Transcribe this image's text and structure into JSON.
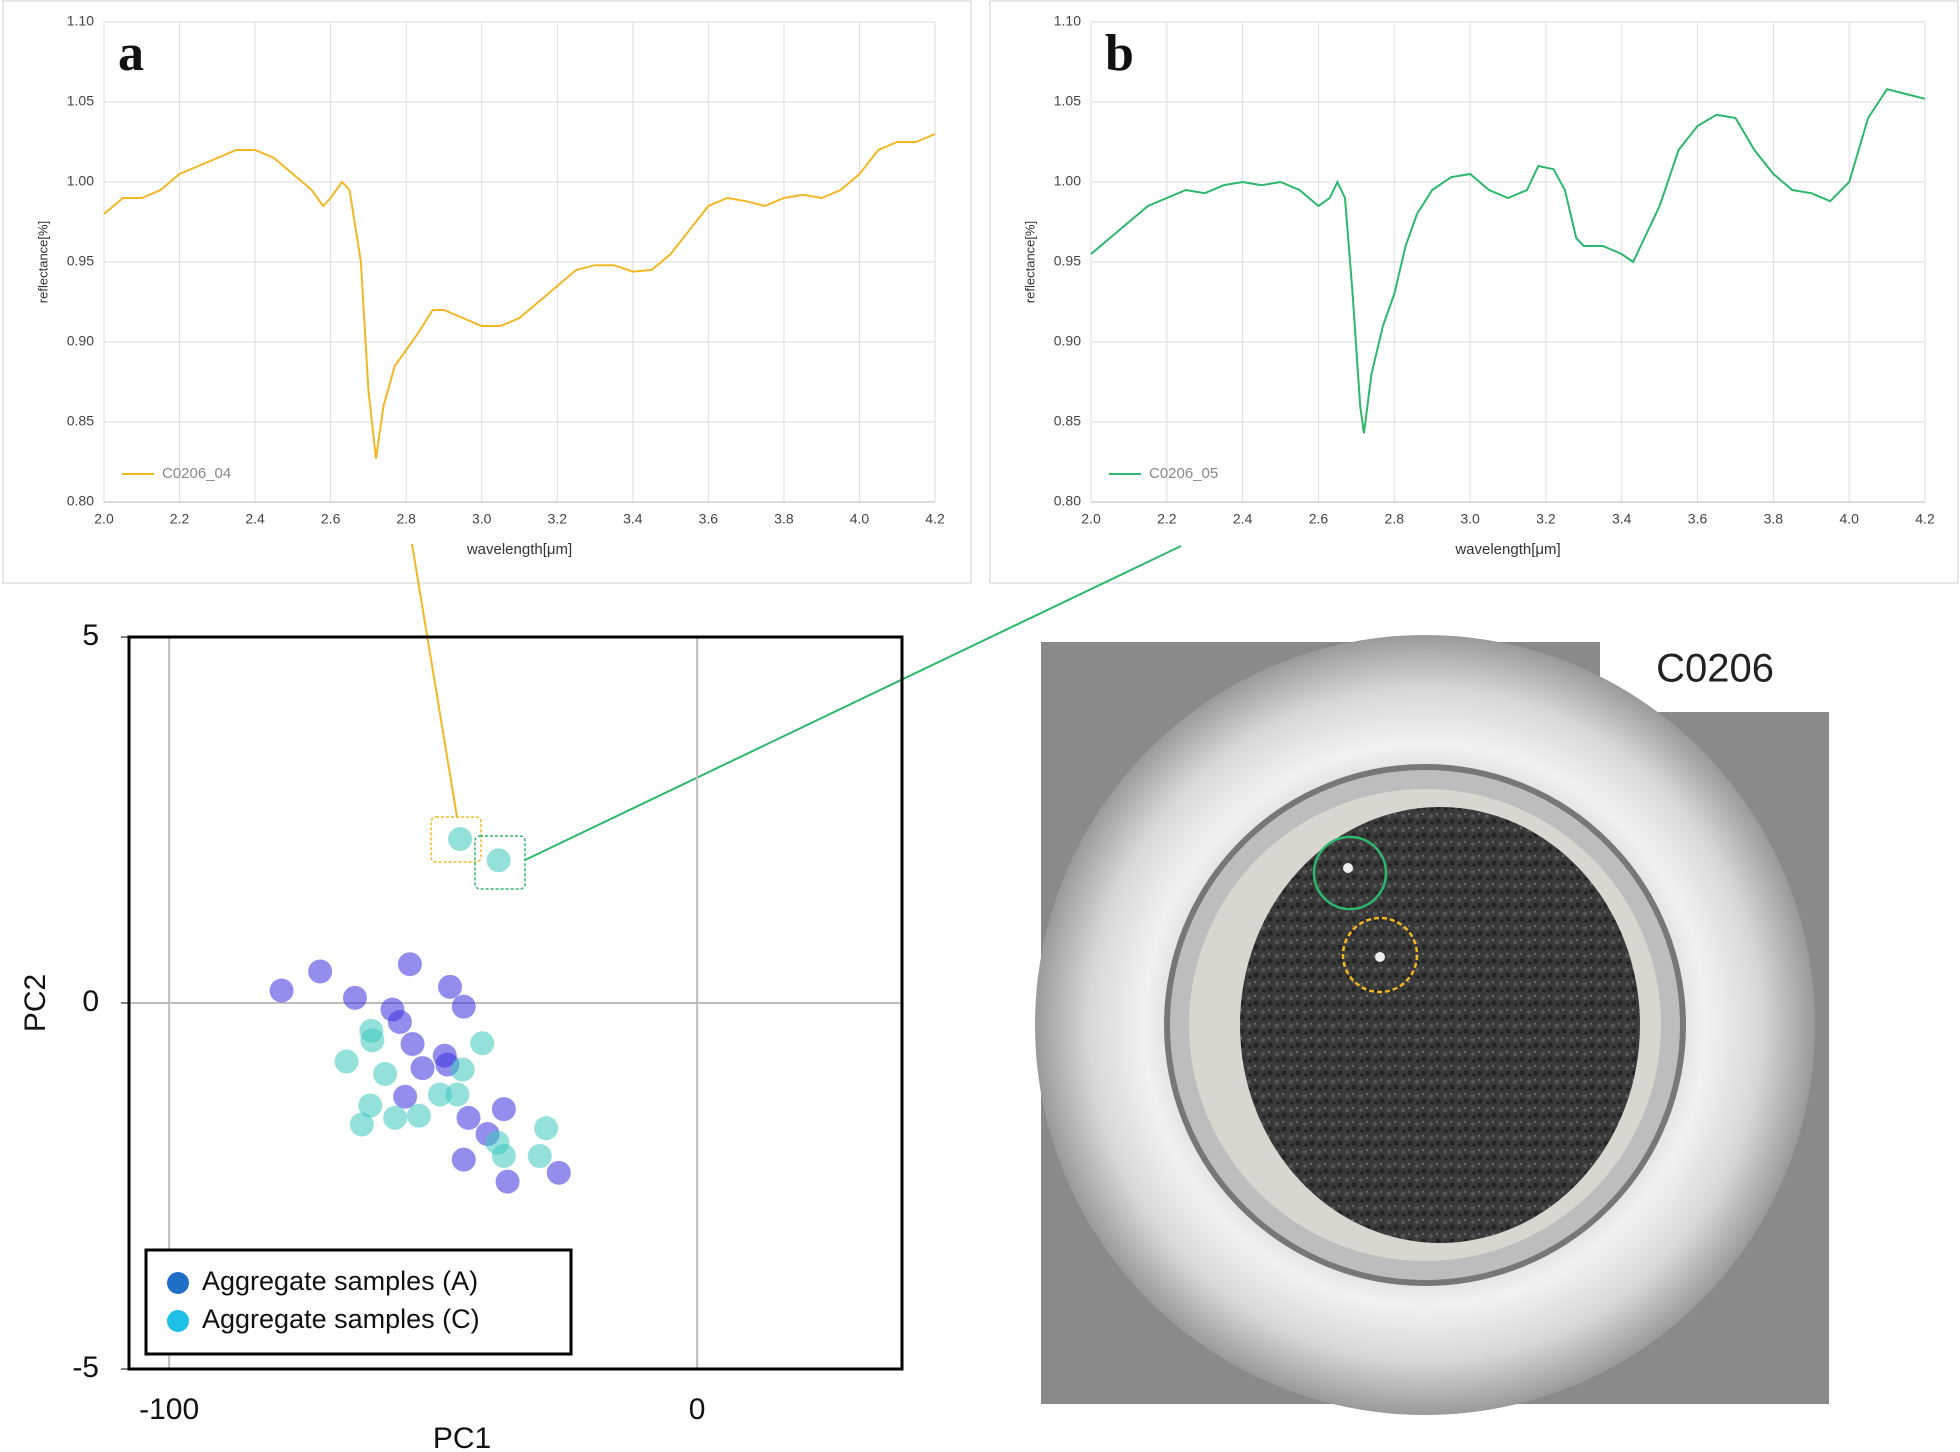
{
  "chart_data": [
    {
      "type": "line",
      "title": "a",
      "x": [
        2.0,
        2.05,
        2.1,
        2.15,
        2.2,
        2.25,
        2.3,
        2.35,
        2.4,
        2.45,
        2.5,
        2.55,
        2.58,
        2.6,
        2.63,
        2.65,
        2.68,
        2.7,
        2.72,
        2.74,
        2.77,
        2.8,
        2.83,
        2.87,
        2.9,
        2.95,
        3.0,
        3.05,
        3.1,
        3.15,
        3.2,
        3.25,
        3.3,
        3.35,
        3.4,
        3.45,
        3.5,
        3.55,
        3.6,
        3.65,
        3.7,
        3.75,
        3.8,
        3.85,
        3.9,
        3.95,
        4.0,
        4.05,
        4.1,
        4.15,
        4.2
      ],
      "series": [
        {
          "name": "C0206_04",
          "color": "#f2b824",
          "values": [
            0.98,
            0.99,
            0.99,
            0.995,
            1.005,
            1.01,
            1.015,
            1.02,
            1.02,
            1.015,
            1.005,
            0.995,
            0.985,
            0.99,
            1.0,
            0.995,
            0.95,
            0.87,
            0.827,
            0.86,
            0.885,
            0.895,
            0.905,
            0.92,
            0.92,
            0.915,
            0.91,
            0.91,
            0.915,
            0.925,
            0.935,
            0.945,
            0.948,
            0.948,
            0.944,
            0.945,
            0.955,
            0.97,
            0.985,
            0.99,
            0.988,
            0.985,
            0.99,
            0.992,
            0.99,
            0.995,
            1.005,
            1.02,
            1.025,
            1.025,
            1.03
          ]
        }
      ],
      "xlabel": "wavelength[μm]",
      "ylabel": "reflectance[%]",
      "xlim": [
        2.0,
        4.2
      ],
      "ylim": [
        0.8,
        1.1
      ],
      "xticks": [
        {
          "value": 2,
          "label": "2.0"
        },
        2.2,
        2.4,
        2.6,
        2.8,
        {
          "value": 3,
          "label": "3.0"
        },
        3.2,
        3.4,
        3.6,
        3.8,
        {
          "value": 4,
          "label": "4.0"
        },
        4.2
      ],
      "yticks": [
        {
          "value": 0.8,
          "label": "0.80"
        },
        {
          "value": 0.85,
          "label": "0.85"
        },
        {
          "value": 0.9,
          "label": "0.90"
        },
        {
          "value": 0.95,
          "label": "0.95"
        },
        {
          "value": 1.0,
          "label": "1.00"
        },
        {
          "value": 1.05,
          "label": "1.05"
        },
        {
          "value": 1.1,
          "label": "1.10"
        }
      ],
      "grid": true,
      "legend": "lower left"
    },
    {
      "type": "line",
      "title": "b",
      "x": [
        2.0,
        2.05,
        2.1,
        2.15,
        2.2,
        2.25,
        2.3,
        2.35,
        2.4,
        2.45,
        2.5,
        2.55,
        2.6,
        2.63,
        2.65,
        2.67,
        2.69,
        2.71,
        2.72,
        2.74,
        2.77,
        2.8,
        2.83,
        2.86,
        2.9,
        2.95,
        3.0,
        3.05,
        3.1,
        3.15,
        3.18,
        3.22,
        3.25,
        3.28,
        3.3,
        3.35,
        3.4,
        3.43,
        3.45,
        3.5,
        3.55,
        3.6,
        3.65,
        3.7,
        3.75,
        3.8,
        3.85,
        3.9,
        3.95,
        4.0,
        4.05,
        4.1,
        4.15,
        4.2
      ],
      "series": [
        {
          "name": "C0206_05",
          "color": "#2db86b",
          "values": [
            0.955,
            0.965,
            0.975,
            0.985,
            0.99,
            0.995,
            0.993,
            0.998,
            1.0,
            0.998,
            1.0,
            0.995,
            0.985,
            0.99,
            1.0,
            0.99,
            0.93,
            0.86,
            0.843,
            0.88,
            0.91,
            0.93,
            0.96,
            0.98,
            0.995,
            1.003,
            1.005,
            0.995,
            0.99,
            0.995,
            1.01,
            1.008,
            0.995,
            0.965,
            0.96,
            0.96,
            0.955,
            0.95,
            0.96,
            0.985,
            1.02,
            1.035,
            1.042,
            1.04,
            1.02,
            1.005,
            0.995,
            0.993,
            0.988,
            1.0,
            1.04,
            1.058,
            1.055,
            1.052
          ]
        }
      ],
      "xlabel": "wavelength[μm]",
      "ylabel": "reflectance[%]",
      "xlim": [
        2.0,
        4.2
      ],
      "ylim": [
        0.8,
        1.1
      ],
      "xticks": [
        {
          "value": 2,
          "label": "2.0"
        },
        2.2,
        2.4,
        2.6,
        2.8,
        {
          "value": 3,
          "label": "3.0"
        },
        3.2,
        3.4,
        3.6,
        3.8,
        {
          "value": 4,
          "label": "4.0"
        },
        4.2
      ],
      "yticks": [
        {
          "value": 0.8,
          "label": "0.80"
        },
        {
          "value": 0.85,
          "label": "0.85"
        },
        {
          "value": 0.9,
          "label": "0.90"
        },
        {
          "value": 0.95,
          "label": "0.95"
        },
        {
          "value": 1.0,
          "label": "1.00"
        },
        {
          "value": 1.05,
          "label": "1.05"
        },
        {
          "value": 1.1,
          "label": "1.10"
        }
      ],
      "grid": true,
      "legend": "lower left"
    },
    {
      "type": "scatter",
      "xlabel": "PC1",
      "ylabel": "PC2",
      "xlim": [
        -107.6,
        38.8
      ],
      "ylim": [
        -5,
        5
      ],
      "xticks": [
        -100,
        0
      ],
      "yticks": [
        -5,
        0,
        5
      ],
      "grid": true,
      "legend": "lower left",
      "series": [
        {
          "name": "Aggregate samples (A)",
          "color": "#3a32e0",
          "legend_color": "#1f6fc8",
          "x": [
            -78.7,
            -71.4,
            -64.8,
            -54.4,
            -46.8,
            -44.2,
            -57.7,
            -56.3,
            -53.9,
            -47.8,
            -47.3,
            -52,
            -55.3,
            -43.3,
            -36.6,
            -39.7,
            -44.2,
            -35.9,
            -26.2
          ],
          "values": [
            0.17,
            0.43,
            0.07,
            0.53,
            0.22,
            -0.05,
            -0.09,
            -0.26,
            -0.56,
            -0.72,
            -0.84,
            -0.89,
            -1.28,
            -1.57,
            -1.45,
            -1.79,
            -2.14,
            -2.44,
            -2.32
          ]
        },
        {
          "name": "Aggregate samples (C)",
          "color": "#3cc8c0",
          "legend_color": "#1ec0e8",
          "x": [
            -44.9,
            -37.6,
            -61.7,
            -61.5,
            -66.4,
            -59.1,
            -61.9,
            -63.5,
            -57.2,
            -52.7,
            -48.7,
            -44.4,
            -40.7,
            -45.4,
            -28.6,
            -29.8,
            -36.6,
            -37.8
          ],
          "values": [
            2.24,
            1.95,
            -0.38,
            -0.51,
            -0.8,
            -0.97,
            -1.4,
            -1.66,
            -1.57,
            -1.54,
            -1.25,
            -0.91,
            -0.55,
            -1.25,
            -1.71,
            -2.09,
            -2.09,
            -1.91
          ]
        }
      ]
    },
    {
      "type": "image",
      "title": "C0206"
    }
  ]
}
